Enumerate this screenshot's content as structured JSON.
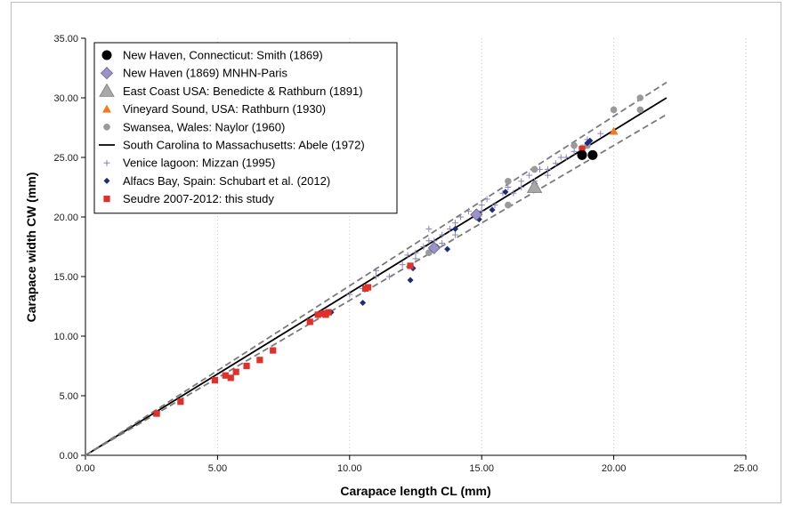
{
  "chart_data": {
    "type": "scatter",
    "title": "",
    "xlabel": "Carapace length CL (mm)",
    "ylabel": "Carapace width CW (mm)",
    "xlim": [
      0,
      25
    ],
    "ylim": [
      0,
      35
    ],
    "xticks": [
      "0.00",
      "5.00",
      "10.00",
      "15.00",
      "20.00",
      "25.00"
    ],
    "yticks": [
      "0.00",
      "5.00",
      "10.00",
      "15.00",
      "20.00",
      "25.00",
      "30.00",
      "35.00"
    ],
    "grid": "vertical dotted",
    "legend_position": "top-left",
    "series": [
      {
        "name": "New Haven, Connecticut: Smith (1869)",
        "marker": "circle",
        "color": "#000000",
        "points": [
          [
            18.8,
            25.2
          ],
          [
            19.2,
            25.2
          ]
        ]
      },
      {
        "name": "New Haven (1869) MNHN-Paris",
        "marker": "diamond",
        "color": "#9a94c4",
        "points": [
          [
            13.2,
            17.4
          ],
          [
            14.8,
            20.2
          ]
        ]
      },
      {
        "name": "East Coast USA: Benedicte & Rathburn (1891)",
        "marker": "triangle",
        "color": "#a8a8a8",
        "points": [
          [
            17.0,
            22.5
          ]
        ]
      },
      {
        "name": "Vineyard Sound, USA: Rathburn (1930)",
        "marker": "triangle-small",
        "color": "#f07b22",
        "points": [
          [
            20.0,
            27.2
          ]
        ]
      },
      {
        "name": "Swansea, Wales: Naylor (1960)",
        "marker": "circle-small",
        "color": "#9a9a9a",
        "points": [
          [
            13.0,
            17.0
          ],
          [
            16.0,
            21.0
          ],
          [
            16.0,
            23.0
          ],
          [
            17.0,
            24.0
          ],
          [
            18.5,
            26.0
          ],
          [
            19.0,
            26.0
          ],
          [
            20.0,
            29.0
          ],
          [
            21.0,
            30.0
          ],
          [
            21.0,
            29.0
          ],
          [
            18.8,
            25.8
          ]
        ]
      },
      {
        "name": "South Carolina to Massachusetts: Abele (1972)",
        "marker": "line",
        "color": "#000000",
        "points": [
          [
            0,
            0
          ],
          [
            22,
            30.0
          ]
        ]
      },
      {
        "name": "Venice lagoon: Mizzan (1995)",
        "marker": "plus",
        "color": "#8a84b8",
        "points": [
          [
            10.0,
            13.5
          ],
          [
            10.5,
            14.0
          ],
          [
            11.0,
            15.0
          ],
          [
            11.0,
            15.5
          ],
          [
            11.5,
            15.0
          ],
          [
            12.0,
            16.0
          ],
          [
            12.5,
            16.5
          ],
          [
            12.5,
            17.0
          ],
          [
            12.8,
            17.5
          ],
          [
            13.0,
            18.0
          ],
          [
            13.0,
            19.0
          ],
          [
            13.2,
            18.0
          ],
          [
            13.5,
            18.5
          ],
          [
            13.8,
            19.0
          ],
          [
            14.0,
            19.5
          ],
          [
            14.2,
            20.0
          ],
          [
            14.5,
            20.5
          ],
          [
            14.8,
            20.0
          ],
          [
            15.0,
            21.0
          ],
          [
            15.2,
            21.5
          ],
          [
            15.5,
            21.0
          ],
          [
            15.8,
            22.0
          ],
          [
            16.0,
            22.5
          ],
          [
            16.2,
            22.0
          ],
          [
            16.5,
            23.0
          ],
          [
            16.8,
            23.5
          ],
          [
            17.0,
            23.0
          ],
          [
            17.2,
            24.0
          ],
          [
            17.5,
            24.0
          ],
          [
            17.8,
            24.5
          ],
          [
            18.0,
            25.0
          ],
          [
            18.2,
            25.0
          ],
          [
            18.5,
            25.5
          ],
          [
            19.0,
            26.5
          ],
          [
            19.5,
            27.0
          ],
          [
            12.2,
            16.8
          ],
          [
            13.5,
            17.8
          ],
          [
            14.0,
            18.5
          ],
          [
            15.0,
            20.5
          ],
          [
            16.5,
            22.5
          ],
          [
            17.5,
            23.5
          ]
        ]
      },
      {
        "name": "Alfacs Bay, Spain: Schubart et al. (2012)",
        "marker": "diamond-small",
        "color": "#1f2a7a",
        "points": [
          [
            9.3,
            12.0
          ],
          [
            10.5,
            12.8
          ],
          [
            12.3,
            14.7
          ],
          [
            12.4,
            15.7
          ],
          [
            13.3,
            17.5
          ],
          [
            13.7,
            17.3
          ],
          [
            14.0,
            19.0
          ],
          [
            14.9,
            19.8
          ],
          [
            15.4,
            20.6
          ],
          [
            15.9,
            22.1
          ],
          [
            17.0,
            22.8
          ],
          [
            18.8,
            25.7
          ],
          [
            19.0,
            26.2
          ],
          [
            19.1,
            26.4
          ]
        ]
      },
      {
        "name": "Seudre 2007-2012: this study",
        "marker": "square",
        "color": "#e0302a",
        "points": [
          [
            2.7,
            3.5
          ],
          [
            3.6,
            4.5
          ],
          [
            4.9,
            6.3
          ],
          [
            5.3,
            6.7
          ],
          [
            5.5,
            6.5
          ],
          [
            5.7,
            7.0
          ],
          [
            6.1,
            7.5
          ],
          [
            6.6,
            8.0
          ],
          [
            7.1,
            8.8
          ],
          [
            8.5,
            11.2
          ],
          [
            8.8,
            11.8
          ],
          [
            9.0,
            11.9
          ],
          [
            9.1,
            11.8
          ],
          [
            9.2,
            12.0
          ],
          [
            10.6,
            14.0
          ],
          [
            10.7,
            14.1
          ],
          [
            12.3,
            15.9
          ],
          [
            18.8,
            25.7
          ]
        ]
      },
      {
        "name": "",
        "marker": "dashed-line",
        "color": "#7a7a7a",
        "points": [
          [
            0,
            0
          ],
          [
            22,
            31.3
          ]
        ]
      },
      {
        "name": "",
        "marker": "dashed-line",
        "color": "#7a7a7a",
        "points": [
          [
            0,
            0
          ],
          [
            22,
            28.6
          ]
        ]
      }
    ]
  }
}
